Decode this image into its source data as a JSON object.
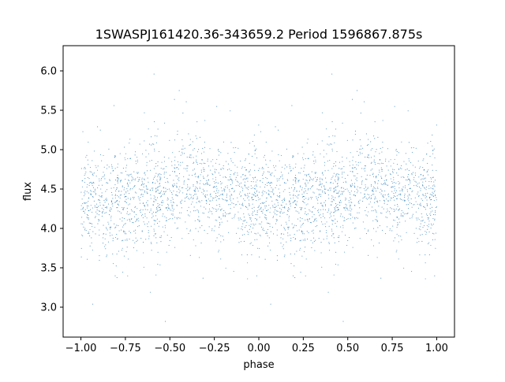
{
  "chart_data": {
    "type": "scatter",
    "title": "1SWASPJ161420.36-343659.2 Period 1596867.875s",
    "xlabel": "phase",
    "ylabel": "flux",
    "xlim": [
      -1.1,
      1.1
    ],
    "ylim": [
      2.62,
      6.32
    ],
    "xticks": [
      -1.0,
      -0.75,
      -0.5,
      -0.25,
      0.0,
      0.25,
      0.5,
      0.75,
      1.0
    ],
    "xtick_labels": [
      "−1.00",
      "−0.75",
      "−0.50",
      "−0.25",
      "0.00",
      "0.25",
      "0.50",
      "0.75",
      "1.00"
    ],
    "yticks": [
      3.0,
      3.5,
      4.0,
      4.5,
      5.0,
      5.5,
      6.0
    ],
    "ytick_labels": [
      "3.0",
      "3.5",
      "4.0",
      "4.5",
      "5.0",
      "5.5",
      "6.0"
    ],
    "grid": false,
    "marker_color": "#1f77b4",
    "series": [
      {
        "profile_phase": [
          0.0,
          0.05,
          0.1,
          0.15,
          0.2,
          0.25,
          0.3,
          0.35,
          0.4,
          0.45,
          0.5,
          0.55,
          0.6,
          0.65,
          0.7,
          0.75,
          0.8,
          0.85,
          0.9,
          0.95,
          1.0
        ],
        "profile_median_flux": [
          4.3,
          4.35,
          4.38,
          4.32,
          4.3,
          4.33,
          4.38,
          4.4,
          4.42,
          4.45,
          4.45,
          4.47,
          4.52,
          4.55,
          4.5,
          4.45,
          4.42,
          4.4,
          4.38,
          4.33,
          4.3
        ],
        "profile_spread": [
          0.3,
          0.3,
          0.3,
          0.3,
          0.3,
          0.32,
          0.33,
          0.3,
          0.35,
          0.33,
          0.3,
          0.3,
          0.32,
          0.35,
          0.32,
          0.3,
          0.3,
          0.28,
          0.28,
          0.3,
          0.3
        ],
        "flux_range": [
          2.8,
          6.15
        ]
      }
    ]
  }
}
